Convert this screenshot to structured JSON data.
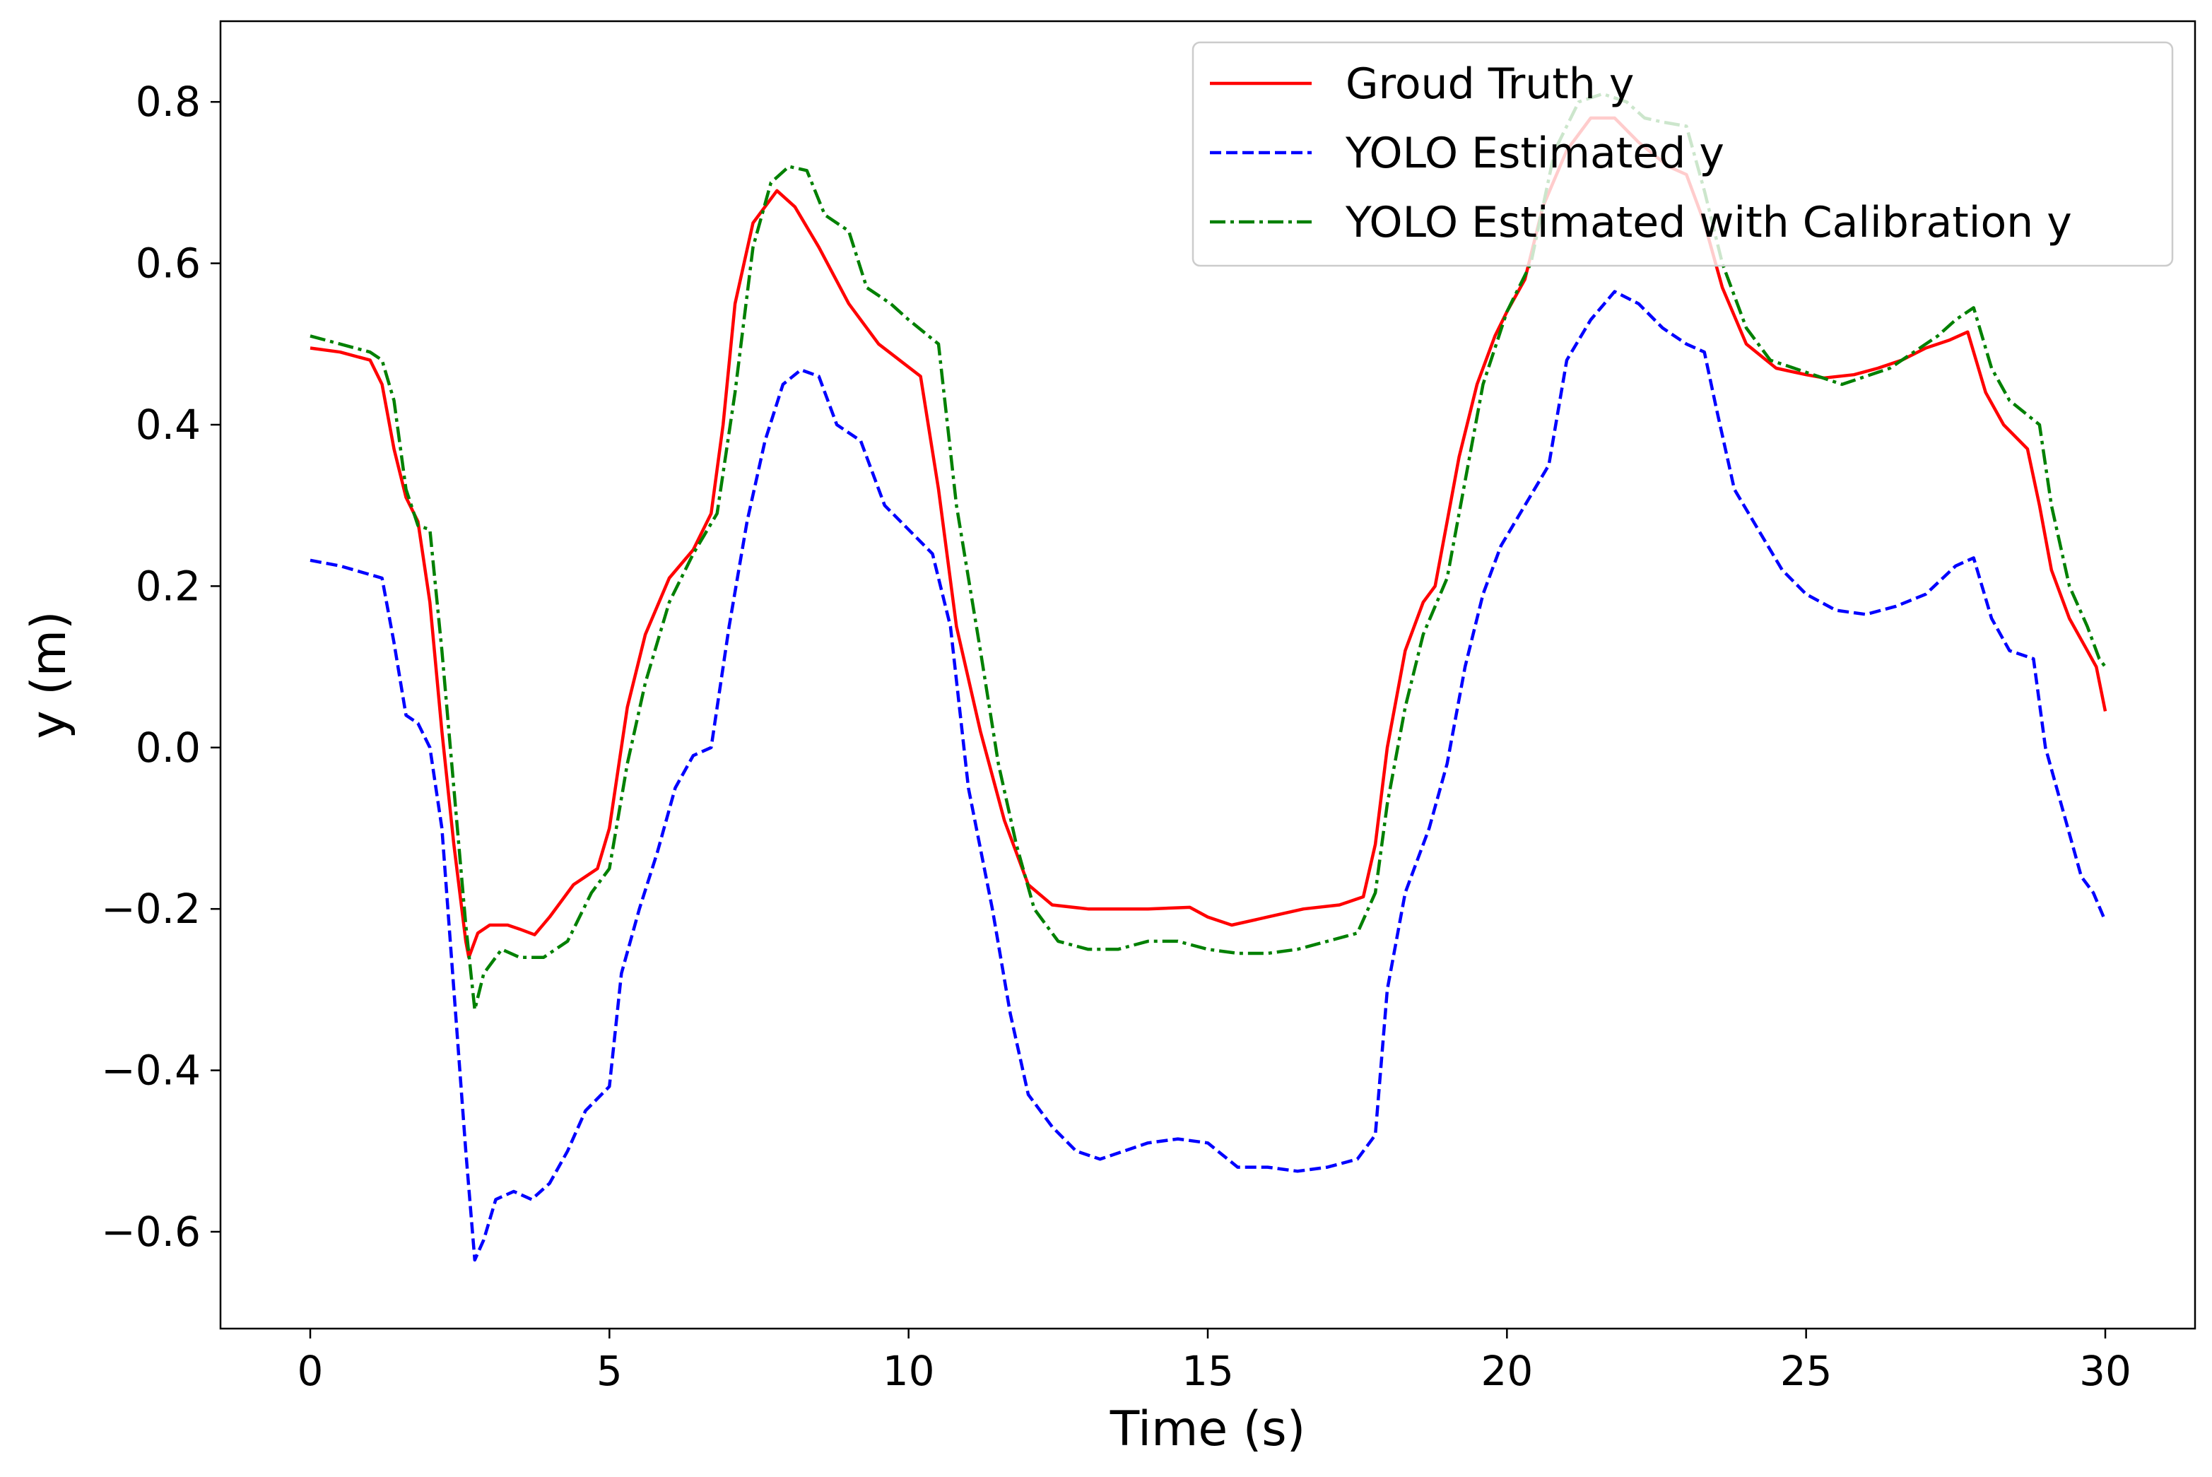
{
  "chart_data": {
    "type": "line",
    "title": "",
    "xlabel": "Time (s)",
    "ylabel": "y (m)",
    "xlim": [
      -1.5,
      31.5
    ],
    "ylim": [
      -0.72,
      0.9
    ],
    "xticks": [
      0,
      5,
      10,
      15,
      20,
      25,
      30
    ],
    "xtick_labels": [
      "0",
      "5",
      "10",
      "15",
      "20",
      "25",
      "30"
    ],
    "yticks": [
      -0.6,
      -0.4,
      -0.2,
      0.0,
      0.2,
      0.4,
      0.6,
      0.8
    ],
    "ytick_labels": [
      "−0.6",
      "−0.4",
      "−0.2",
      "0.0",
      "0.2",
      "0.4",
      "0.6",
      "0.8"
    ],
    "grid": false,
    "legend_position": "top-right",
    "series": [
      {
        "name": "Groud Truth y",
        "color": "#ff0000",
        "style": "solid",
        "points": [
          [
            0,
            0.495
          ],
          [
            0.5,
            0.49
          ],
          [
            1.0,
            0.48
          ],
          [
            1.2,
            0.45
          ],
          [
            1.4,
            0.37
          ],
          [
            1.6,
            0.31
          ],
          [
            1.8,
            0.28
          ],
          [
            2.0,
            0.18
          ],
          [
            2.2,
            0.02
          ],
          [
            2.4,
            -0.12
          ],
          [
            2.6,
            -0.24
          ],
          [
            2.65,
            -0.26
          ],
          [
            2.8,
            -0.23
          ],
          [
            3.0,
            -0.22
          ],
          [
            3.3,
            -0.22
          ],
          [
            3.5,
            -0.225
          ],
          [
            3.75,
            -0.232
          ],
          [
            4.0,
            -0.21
          ],
          [
            4.4,
            -0.17
          ],
          [
            4.8,
            -0.15
          ],
          [
            5.0,
            -0.1
          ],
          [
            5.3,
            0.05
          ],
          [
            5.6,
            0.14
          ],
          [
            6.0,
            0.21
          ],
          [
            6.4,
            0.245
          ],
          [
            6.7,
            0.29
          ],
          [
            6.9,
            0.4
          ],
          [
            7.1,
            0.55
          ],
          [
            7.4,
            0.65
          ],
          [
            7.8,
            0.69
          ],
          [
            8.1,
            0.67
          ],
          [
            8.5,
            0.62
          ],
          [
            9.0,
            0.55
          ],
          [
            9.5,
            0.5
          ],
          [
            10.2,
            0.46
          ],
          [
            10.5,
            0.32
          ],
          [
            10.8,
            0.15
          ],
          [
            11.2,
            0.02
          ],
          [
            11.6,
            -0.09
          ],
          [
            12.0,
            -0.17
          ],
          [
            12.4,
            -0.195
          ],
          [
            13.0,
            -0.2
          ],
          [
            14.0,
            -0.2
          ],
          [
            14.7,
            -0.198
          ],
          [
            15.0,
            -0.21
          ],
          [
            15.4,
            -0.22
          ],
          [
            16.0,
            -0.21
          ],
          [
            16.6,
            -0.2
          ],
          [
            17.2,
            -0.195
          ],
          [
            17.6,
            -0.185
          ],
          [
            17.8,
            -0.12
          ],
          [
            18.0,
            0.0
          ],
          [
            18.3,
            0.12
          ],
          [
            18.6,
            0.18
          ],
          [
            18.8,
            0.2
          ],
          [
            19.0,
            0.28
          ],
          [
            19.2,
            0.36
          ],
          [
            19.5,
            0.45
          ],
          [
            19.8,
            0.51
          ],
          [
            20.0,
            0.54
          ],
          [
            20.3,
            0.58
          ],
          [
            20.6,
            0.67
          ],
          [
            21.0,
            0.74
          ],
          [
            21.4,
            0.78
          ],
          [
            21.8,
            0.78
          ],
          [
            22.2,
            0.75
          ],
          [
            22.7,
            0.72
          ],
          [
            23.0,
            0.71
          ],
          [
            23.3,
            0.65
          ],
          [
            23.6,
            0.57
          ],
          [
            24.0,
            0.5
          ],
          [
            24.5,
            0.47
          ],
          [
            25.0,
            0.462
          ],
          [
            25.3,
            0.458
          ],
          [
            25.8,
            0.462
          ],
          [
            26.2,
            0.47
          ],
          [
            26.6,
            0.48
          ],
          [
            27.0,
            0.495
          ],
          [
            27.4,
            0.505
          ],
          [
            27.7,
            0.515
          ],
          [
            28.0,
            0.44
          ],
          [
            28.3,
            0.4
          ],
          [
            28.7,
            0.37
          ],
          [
            28.9,
            0.3
          ],
          [
            29.1,
            0.22
          ],
          [
            29.4,
            0.16
          ],
          [
            29.7,
            0.12
          ],
          [
            29.85,
            0.1
          ],
          [
            30.0,
            0.045
          ]
        ]
      },
      {
        "name": "YOLO Estimated y",
        "color": "#0000ff",
        "style": "dashed",
        "points": [
          [
            0,
            0.232
          ],
          [
            0.5,
            0.225
          ],
          [
            1.2,
            0.21
          ],
          [
            1.4,
            0.13
          ],
          [
            1.6,
            0.04
          ],
          [
            1.8,
            0.03
          ],
          [
            2.0,
            0.0
          ],
          [
            2.2,
            -0.1
          ],
          [
            2.4,
            -0.3
          ],
          [
            2.6,
            -0.5
          ],
          [
            2.75,
            -0.635
          ],
          [
            2.9,
            -0.61
          ],
          [
            3.1,
            -0.56
          ],
          [
            3.4,
            -0.55
          ],
          [
            3.7,
            -0.56
          ],
          [
            4.0,
            -0.54
          ],
          [
            4.3,
            -0.5
          ],
          [
            4.6,
            -0.45
          ],
          [
            5.0,
            -0.42
          ],
          [
            5.2,
            -0.28
          ],
          [
            5.5,
            -0.2
          ],
          [
            5.8,
            -0.13
          ],
          [
            6.1,
            -0.05
          ],
          [
            6.4,
            -0.01
          ],
          [
            6.7,
            0.0
          ],
          [
            7.0,
            0.15
          ],
          [
            7.3,
            0.28
          ],
          [
            7.6,
            0.38
          ],
          [
            7.9,
            0.45
          ],
          [
            8.2,
            0.468
          ],
          [
            8.5,
            0.46
          ],
          [
            8.8,
            0.4
          ],
          [
            9.2,
            0.38
          ],
          [
            9.6,
            0.3
          ],
          [
            10.0,
            0.27
          ],
          [
            10.4,
            0.24
          ],
          [
            10.7,
            0.15
          ],
          [
            11.0,
            -0.05
          ],
          [
            11.4,
            -0.2
          ],
          [
            11.7,
            -0.33
          ],
          [
            12.0,
            -0.43
          ],
          [
            12.4,
            -0.47
          ],
          [
            12.8,
            -0.5
          ],
          [
            13.2,
            -0.51
          ],
          [
            13.6,
            -0.5
          ],
          [
            14.0,
            -0.49
          ],
          [
            14.5,
            -0.485
          ],
          [
            15.0,
            -0.49
          ],
          [
            15.5,
            -0.52
          ],
          [
            16.0,
            -0.52
          ],
          [
            16.5,
            -0.525
          ],
          [
            17.0,
            -0.52
          ],
          [
            17.5,
            -0.51
          ],
          [
            17.8,
            -0.48
          ],
          [
            18.0,
            -0.3
          ],
          [
            18.3,
            -0.18
          ],
          [
            18.7,
            -0.1
          ],
          [
            19.0,
            -0.02
          ],
          [
            19.3,
            0.1
          ],
          [
            19.6,
            0.19
          ],
          [
            19.9,
            0.25
          ],
          [
            20.3,
            0.3
          ],
          [
            20.7,
            0.35
          ],
          [
            21.0,
            0.48
          ],
          [
            21.4,
            0.53
          ],
          [
            21.8,
            0.565
          ],
          [
            22.2,
            0.55
          ],
          [
            22.6,
            0.52
          ],
          [
            23.0,
            0.5
          ],
          [
            23.3,
            0.49
          ],
          [
            23.5,
            0.42
          ],
          [
            23.8,
            0.32
          ],
          [
            24.2,
            0.27
          ],
          [
            24.6,
            0.22
          ],
          [
            25.0,
            0.19
          ],
          [
            25.5,
            0.17
          ],
          [
            26.0,
            0.165
          ],
          [
            26.5,
            0.175
          ],
          [
            27.0,
            0.19
          ],
          [
            27.5,
            0.225
          ],
          [
            27.8,
            0.235
          ],
          [
            28.1,
            0.16
          ],
          [
            28.4,
            0.12
          ],
          [
            28.8,
            0.11
          ],
          [
            29.0,
            0.0
          ],
          [
            29.3,
            -0.08
          ],
          [
            29.6,
            -0.16
          ],
          [
            29.8,
            -0.18
          ],
          [
            30.0,
            -0.215
          ]
        ]
      },
      {
        "name": "YOLO Estimated with Calibration y",
        "color": "#008000",
        "style": "dashdot",
        "points": [
          [
            0,
            0.51
          ],
          [
            0.5,
            0.5
          ],
          [
            1.0,
            0.49
          ],
          [
            1.2,
            0.48
          ],
          [
            1.4,
            0.43
          ],
          [
            1.6,
            0.32
          ],
          [
            1.8,
            0.275
          ],
          [
            2.0,
            0.27
          ],
          [
            2.2,
            0.12
          ],
          [
            2.4,
            -0.05
          ],
          [
            2.6,
            -0.22
          ],
          [
            2.75,
            -0.325
          ],
          [
            2.9,
            -0.28
          ],
          [
            3.2,
            -0.25
          ],
          [
            3.5,
            -0.26
          ],
          [
            3.9,
            -0.26
          ],
          [
            4.3,
            -0.24
          ],
          [
            4.7,
            -0.18
          ],
          [
            5.0,
            -0.15
          ],
          [
            5.3,
            -0.02
          ],
          [
            5.6,
            0.08
          ],
          [
            6.0,
            0.18
          ],
          [
            6.4,
            0.24
          ],
          [
            6.8,
            0.29
          ],
          [
            7.1,
            0.44
          ],
          [
            7.4,
            0.62
          ],
          [
            7.7,
            0.7
          ],
          [
            8.0,
            0.72
          ],
          [
            8.3,
            0.715
          ],
          [
            8.6,
            0.66
          ],
          [
            9.0,
            0.64
          ],
          [
            9.3,
            0.57
          ],
          [
            9.7,
            0.55
          ],
          [
            10.0,
            0.53
          ],
          [
            10.5,
            0.5
          ],
          [
            10.8,
            0.3
          ],
          [
            11.2,
            0.12
          ],
          [
            11.5,
            -0.02
          ],
          [
            11.8,
            -0.12
          ],
          [
            12.1,
            -0.2
          ],
          [
            12.5,
            -0.24
          ],
          [
            13.0,
            -0.25
          ],
          [
            13.5,
            -0.25
          ],
          [
            14.0,
            -0.24
          ],
          [
            14.5,
            -0.24
          ],
          [
            15.0,
            -0.25
          ],
          [
            15.5,
            -0.255
          ],
          [
            16.0,
            -0.255
          ],
          [
            16.5,
            -0.25
          ],
          [
            17.0,
            -0.24
          ],
          [
            17.5,
            -0.23
          ],
          [
            17.8,
            -0.18
          ],
          [
            18.0,
            -0.07
          ],
          [
            18.3,
            0.05
          ],
          [
            18.6,
            0.14
          ],
          [
            19.0,
            0.21
          ],
          [
            19.3,
            0.33
          ],
          [
            19.6,
            0.45
          ],
          [
            20.0,
            0.54
          ],
          [
            20.4,
            0.6
          ],
          [
            20.8,
            0.74
          ],
          [
            21.2,
            0.8
          ],
          [
            21.6,
            0.81
          ],
          [
            22.0,
            0.8
          ],
          [
            22.3,
            0.78
          ],
          [
            22.6,
            0.775
          ],
          [
            23.0,
            0.77
          ],
          [
            23.3,
            0.69
          ],
          [
            23.6,
            0.6
          ],
          [
            24.0,
            0.52
          ],
          [
            24.4,
            0.48
          ],
          [
            24.8,
            0.47
          ],
          [
            25.2,
            0.46
          ],
          [
            25.6,
            0.45
          ],
          [
            26.0,
            0.46
          ],
          [
            26.4,
            0.47
          ],
          [
            26.8,
            0.49
          ],
          [
            27.2,
            0.51
          ],
          [
            27.5,
            0.53
          ],
          [
            27.8,
            0.545
          ],
          [
            28.1,
            0.47
          ],
          [
            28.4,
            0.43
          ],
          [
            28.9,
            0.4
          ],
          [
            29.1,
            0.3
          ],
          [
            29.4,
            0.2
          ],
          [
            29.7,
            0.15
          ],
          [
            29.9,
            0.11
          ],
          [
            30.0,
            0.1
          ]
        ]
      }
    ]
  }
}
